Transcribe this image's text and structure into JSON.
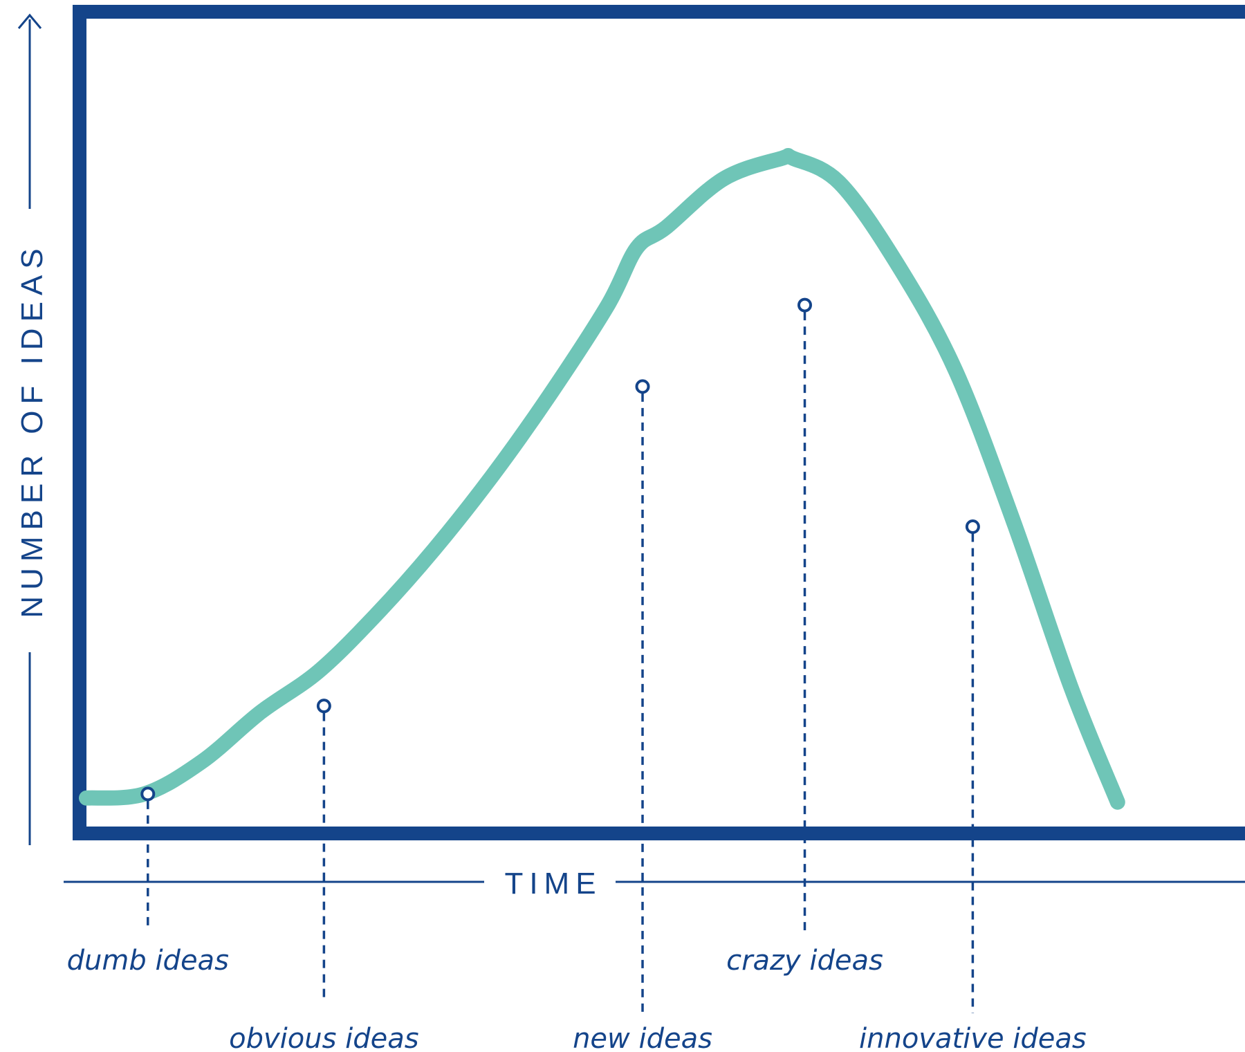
{
  "chart_data": {
    "type": "line",
    "title": "",
    "xlabel": "TIME",
    "ylabel": "NUMBER OF IDEAS",
    "x_ticks": false,
    "y_ticks": false,
    "grid": false,
    "legend": "none",
    "xlim": [
      0,
      100
    ],
    "ylim": [
      0,
      100
    ],
    "curve": {
      "x": [
        0,
        5,
        10,
        15,
        20,
        25,
        30,
        35,
        40,
        45,
        47.5,
        50,
        55,
        60,
        61,
        65,
        70,
        75,
        80,
        85,
        89
      ],
      "y": [
        3.5,
        4,
        8,
        14,
        19,
        26,
        34,
        43,
        53,
        64,
        71,
        73.5,
        79.5,
        82,
        82,
        79,
        69,
        56,
        37.5,
        17,
        3
      ]
    },
    "points": [
      {
        "label": "dumb ideas",
        "x": 5.3,
        "y": 4
      },
      {
        "label": "obvious ideas",
        "x": 20.5,
        "y": 14.8
      },
      {
        "label": "new ideas",
        "x": 48,
        "y": 54
      },
      {
        "label": "crazy ideas",
        "x": 62,
        "y": 64
      },
      {
        "label": "innovative ideas",
        "x": 76.5,
        "y": 36.8
      }
    ],
    "colors": {
      "axis": "#14448a",
      "curve": "#6fc5b7",
      "text": "#14448a",
      "background": "#ffffff"
    }
  }
}
